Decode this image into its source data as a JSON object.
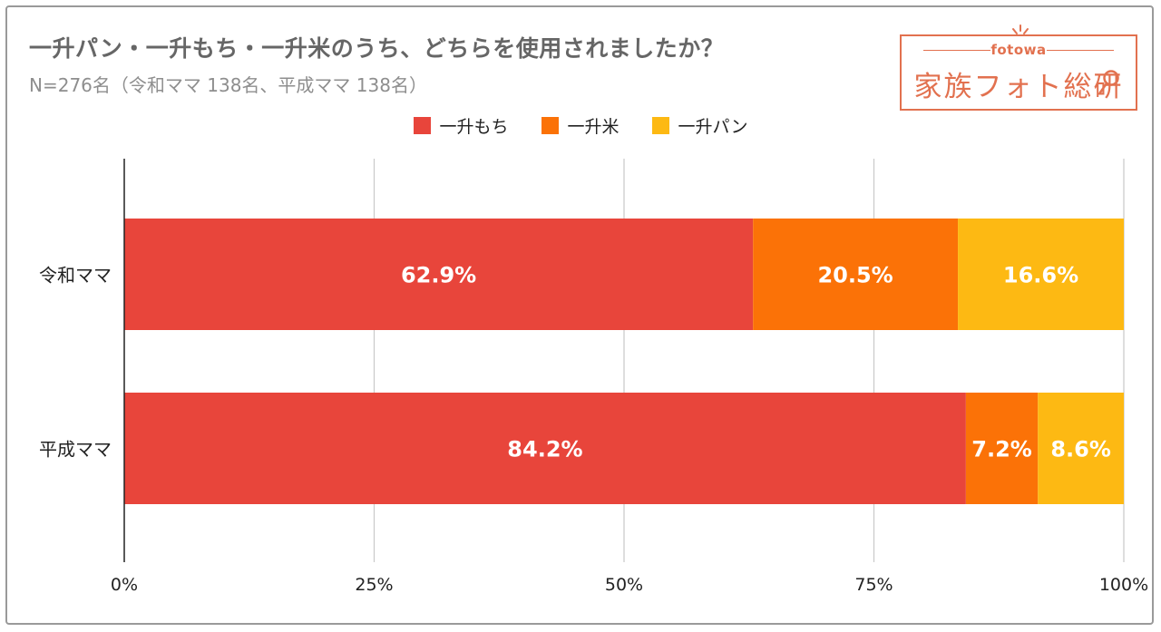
{
  "header": {
    "title": "一升パン・一升もち・一升米のうち、どちらを使用されましたか？",
    "subtitle": "N=276名（令和ママ 138名、平成ママ 138名）"
  },
  "logo": {
    "small_text": "fotowa",
    "main_text": "家族フォト総研"
  },
  "colors": {
    "mochi": "#e8453b",
    "kome": "#fb7207",
    "pan": "#fdb913",
    "grid": "#c9c9c9",
    "axis": "#222222",
    "logo": "#e2714f"
  },
  "chart_data": {
    "type": "bar",
    "orientation": "horizontal",
    "stacked": true,
    "categories": [
      "令和ママ",
      "平成ママ"
    ],
    "series": [
      {
        "name": "一升もち",
        "values": [
          62.9,
          84.2
        ],
        "labels": [
          "62.9%",
          "84.2%"
        ]
      },
      {
        "name": "一升米",
        "values": [
          20.5,
          7.2
        ],
        "labels": [
          "20.5%",
          "7.2%"
        ]
      },
      {
        "name": "一升パン",
        "values": [
          16.6,
          8.6
        ],
        "labels": [
          "16.6%",
          "8.6%"
        ]
      }
    ],
    "xlim": [
      0,
      100
    ],
    "xticks": [
      0,
      25,
      50,
      75,
      100
    ],
    "xtick_labels": [
      "0%",
      "25%",
      "50%",
      "75%",
      "100%"
    ],
    "grid": true,
    "legend_position": "top-center"
  }
}
